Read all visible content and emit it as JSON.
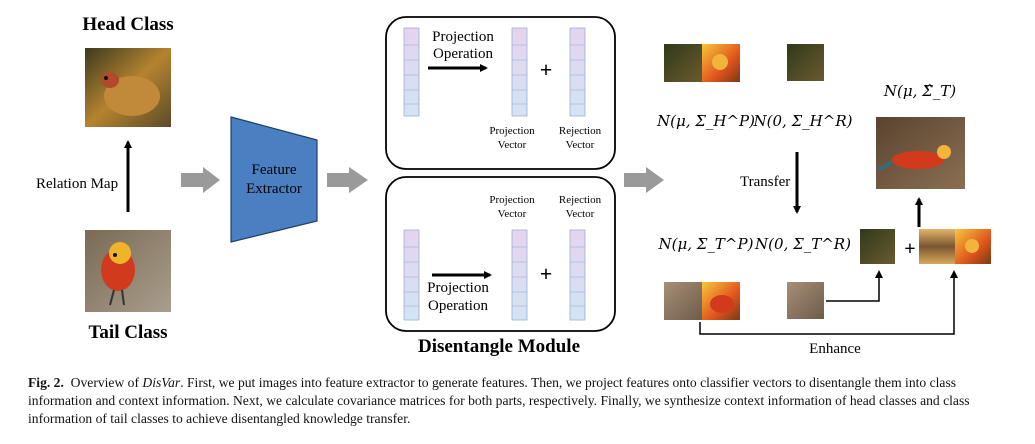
{
  "figure": {
    "head_class": "Head Class",
    "tail_class": "Tail Class",
    "relation_map": "Relation Map",
    "feature_extractor_line1": "Feature",
    "feature_extractor_line2": "Extractor",
    "disentangle_module": "Disentangle Module",
    "projection_operation_line1": "Projection",
    "projection_operation_line2": "Operation",
    "projection_vector_line1": "Projection",
    "projection_vector_line2": "Vector",
    "rejection_vector_line1": "Rejection",
    "rejection_vector_line2": "Vector",
    "plus_symbol": "+",
    "transfer": "Transfer",
    "enhance": "Enhance",
    "math_n_mu_sigma_hat_t": "N(μ, Σ̂_T)",
    "math_n_mu_sigma_h_p": "N(μ, Σ_H^P)",
    "math_n_0_sigma_h_r": "N(0, Σ_H^R)",
    "math_n_mu_sigma_t_p": "N(μ, Σ_T^P)",
    "math_n_0_sigma_t_r": "N(0, Σ_T^R)"
  },
  "caption": {
    "label": "Fig. 2.",
    "text_before": "Overview of ",
    "method_name": "DisVar",
    "text_after": ". First, we put images into feature extractor to generate features. Then, we project features onto classifier vectors to disentangle them into class information and context information. Next, we calculate covariance matrices for both parts, respectively. Finally, we synthesize context information of head classes and class information of tail classes to achieve disentangled knowledge transfer."
  },
  "colors": {
    "feature_extractor_fill": "#4a7fc1",
    "vector_top": "#e6d3f0",
    "vector_bottom": "#d2e4f4",
    "arrow_gray": "#9a9a9a"
  }
}
